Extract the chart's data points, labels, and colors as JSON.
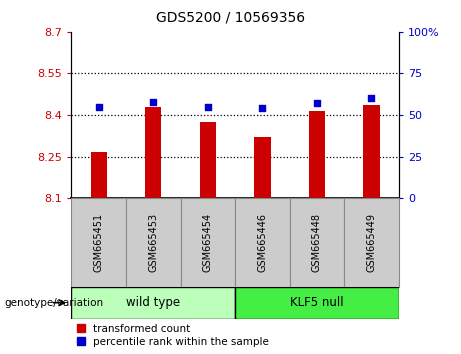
{
  "title": "GDS5200 / 10569356",
  "categories": [
    "GSM665451",
    "GSM665453",
    "GSM665454",
    "GSM665446",
    "GSM665448",
    "GSM665449"
  ],
  "bar_values": [
    8.265,
    8.43,
    8.375,
    8.32,
    8.415,
    8.435
  ],
  "dot_values": [
    55,
    58,
    55,
    54,
    57,
    60
  ],
  "bar_color": "#cc0000",
  "dot_color": "#0000cc",
  "ylim_left": [
    8.1,
    8.7
  ],
  "ylim_right": [
    0,
    100
  ],
  "yticks_left": [
    8.1,
    8.25,
    8.4,
    8.55,
    8.7
  ],
  "ytick_labels_left": [
    "8.1",
    "8.25",
    "8.4",
    "8.55",
    "8.7"
  ],
  "yticks_right": [
    0,
    25,
    50,
    75,
    100
  ],
  "ytick_labels_right": [
    "0",
    "25",
    "50",
    "75",
    "100%"
  ],
  "grid_yticks": [
    8.25,
    8.4,
    8.55
  ],
  "wild_type_color": "#bbffbb",
  "klf5_null_color": "#44ee44",
  "genotype_label": "genotype/variation",
  "legend_bar_label": "transformed count",
  "legend_dot_label": "percentile rank within the sample",
  "bar_base": 8.1,
  "bar_width": 0.3,
  "tick_label_color_left": "#cc0000",
  "tick_label_color_right": "#0000cc",
  "gray_box_color": "#cccccc",
  "gray_box_edge_color": "#888888"
}
